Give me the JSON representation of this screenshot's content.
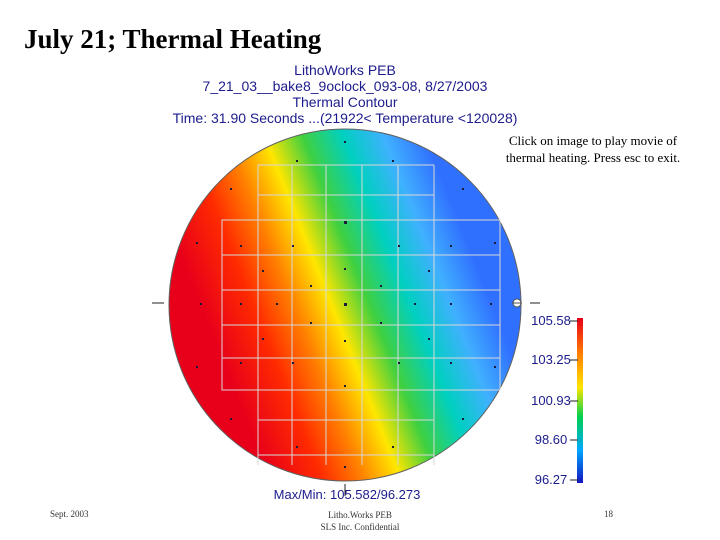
{
  "slide": {
    "title": "July 21; Thermal Heating"
  },
  "plot_header": {
    "line1": "LithoWorks PEB",
    "line2": "7_21_03__bake8_9oclock_093-08, 8/27/2003",
    "line3": "Thermal Contour",
    "line4": "Time: 31.90 Seconds ...(21922< Temperature <120028)"
  },
  "note": {
    "text": "Click on image to play movie of thermal heating. Press esc to exit."
  },
  "color_scale": {
    "labels": [
      "105.58",
      "103.25",
      "100.93",
      "98.60",
      "96.27"
    ],
    "colors": [
      "#e8001a",
      "#ff8000",
      "#ffe600",
      "#00d050",
      "#00a8ff",
      "#1414c0"
    ]
  },
  "maxmin": {
    "text": "Max/Min: 105.582/96.273"
  },
  "footer": {
    "left": "Sept. 2003",
    "center_line1": "Litho.Works PEB",
    "center_line2": "SLS Inc. Confidential",
    "right": "18"
  }
}
